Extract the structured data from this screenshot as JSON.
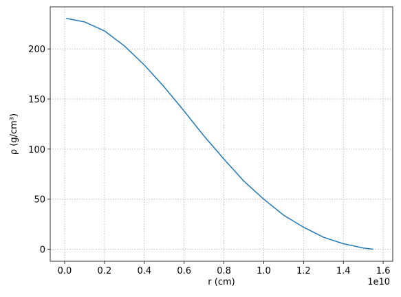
{
  "chart_data": {
    "type": "line",
    "xlabel": "r (cm)",
    "ylabel": "ρ (g/cm³)",
    "x_offset_label": "1e10",
    "x": [
      0.0077,
      0.1,
      0.2,
      0.3,
      0.4,
      0.5,
      0.6,
      0.7,
      0.8,
      0.9,
      1.0,
      1.1,
      1.2,
      1.3,
      1.4,
      1.5,
      1.55
    ],
    "series": [
      {
        "color": "#1f77b4",
        "values": [
          230.5,
          227,
          218,
          203,
          184,
          162,
          138,
          113,
          90,
          68,
          50,
          34,
          22,
          12,
          5.5,
          1.2,
          0
        ]
      }
    ],
    "xlim": [
      -0.0726,
      1.648
    ],
    "ylim": [
      -12,
      242
    ],
    "xticks": [
      {
        "value": 0,
        "label": "0.0"
      },
      0.2,
      0.4,
      0.6,
      0.8,
      {
        "value": 1,
        "label": "1.0"
      },
      1.2,
      1.4,
      1.6
    ],
    "yticks": [
      0,
      50,
      100,
      150,
      200
    ],
    "grid": true
  }
}
